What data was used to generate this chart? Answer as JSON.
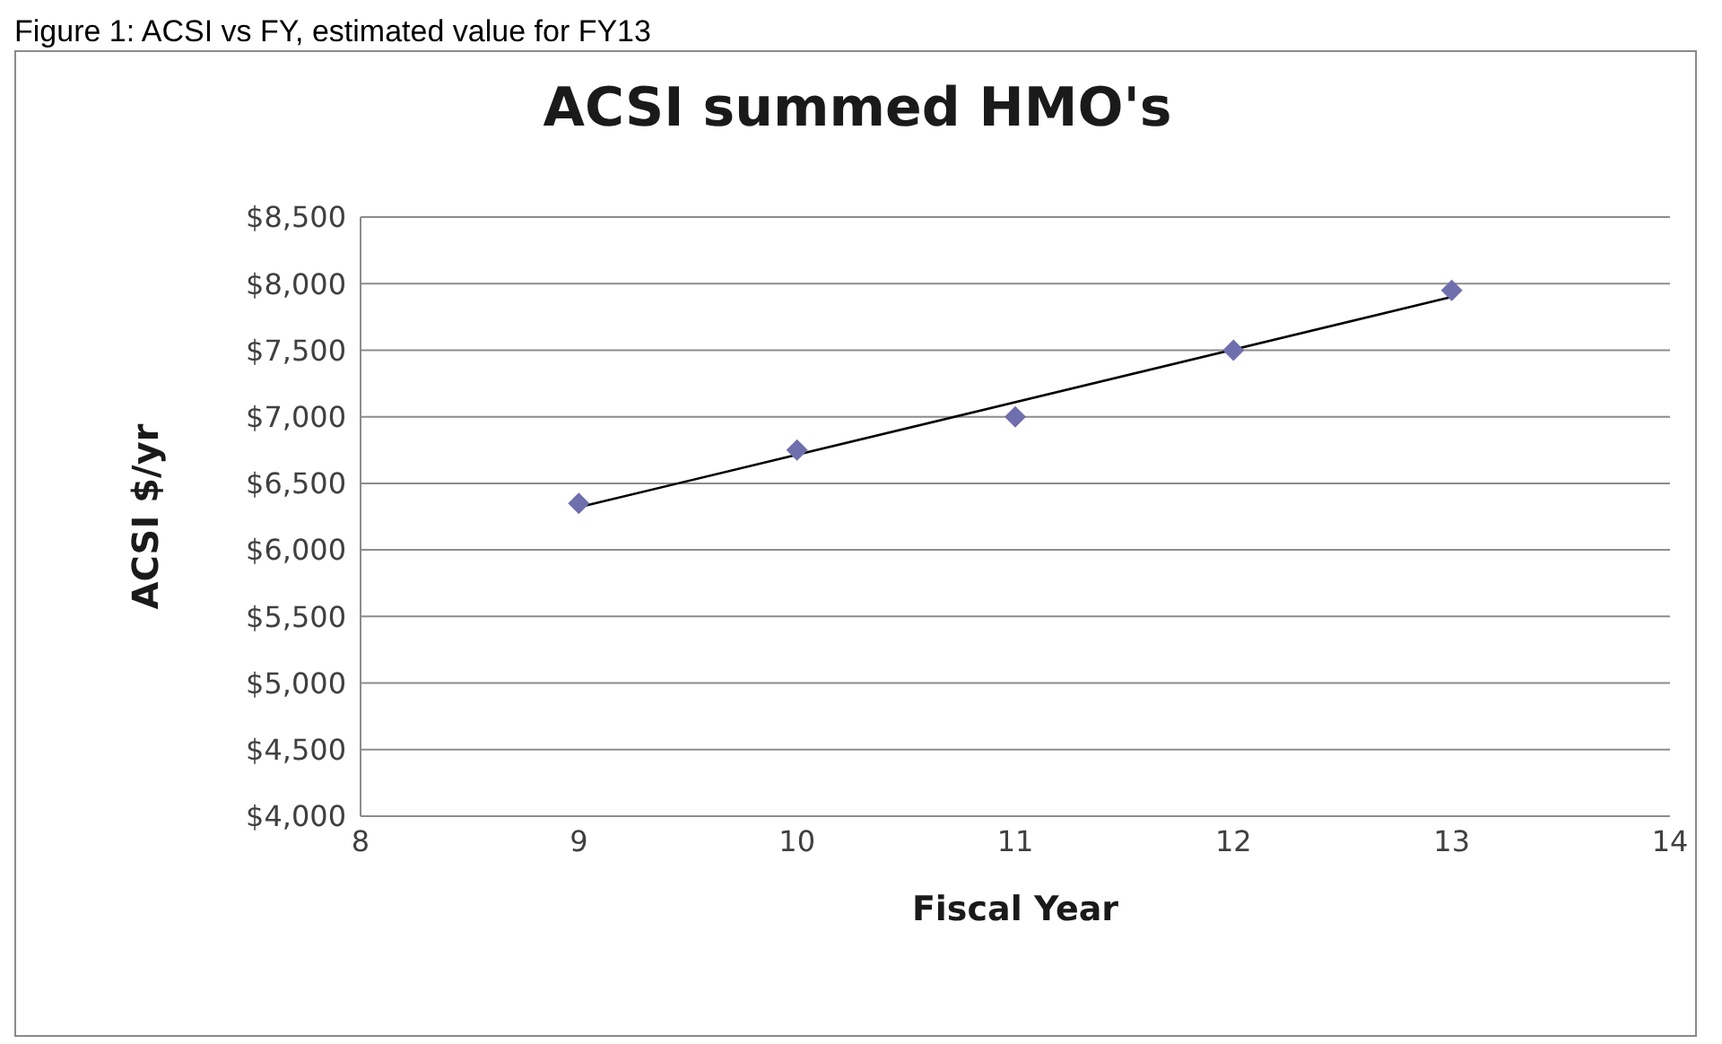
{
  "chart_data": {
    "type": "scatter",
    "title": "ACSI summed HMO's",
    "xlabel": "Fiscal Year",
    "ylabel": "ACSI $/yr",
    "annotations": [
      "Figure 1: ACSI vs FY, estimated value for FY13"
    ],
    "x": [
      9,
      10,
      11,
      12,
      13
    ],
    "series": [
      {
        "color": "#6f6fae",
        "values": [
          6350,
          6750,
          7000,
          7500,
          7950
        ],
        "marker": "diamond"
      },
      {
        "type": "line",
        "color": "#000000",
        "x": [
          9,
          13
        ],
        "values": [
          6320,
          7900
        ],
        "marker": "none",
        "line_style": "solid"
      }
    ],
    "xlim": [
      8,
      14
    ],
    "xticks": [
      8,
      9,
      10,
      11,
      12,
      13,
      14
    ],
    "ylim": [
      4000,
      8500
    ],
    "yticks": [
      {
        "value": 4000,
        "label": "$4,000"
      },
      {
        "value": 4500,
        "label": "$4,500"
      },
      {
        "value": 5000,
        "label": "$5,000"
      },
      {
        "value": 5500,
        "label": "$5,500"
      },
      {
        "value": 6000,
        "label": "$6,000"
      },
      {
        "value": 6500,
        "label": "$6,500"
      },
      {
        "value": 7000,
        "label": "$7,000"
      },
      {
        "value": 7500,
        "label": "$7,500"
      },
      {
        "value": 8000,
        "label": "$8,000"
      },
      {
        "value": 8500,
        "label": "$8,500"
      }
    ],
    "grid": "y",
    "legend": false
  }
}
